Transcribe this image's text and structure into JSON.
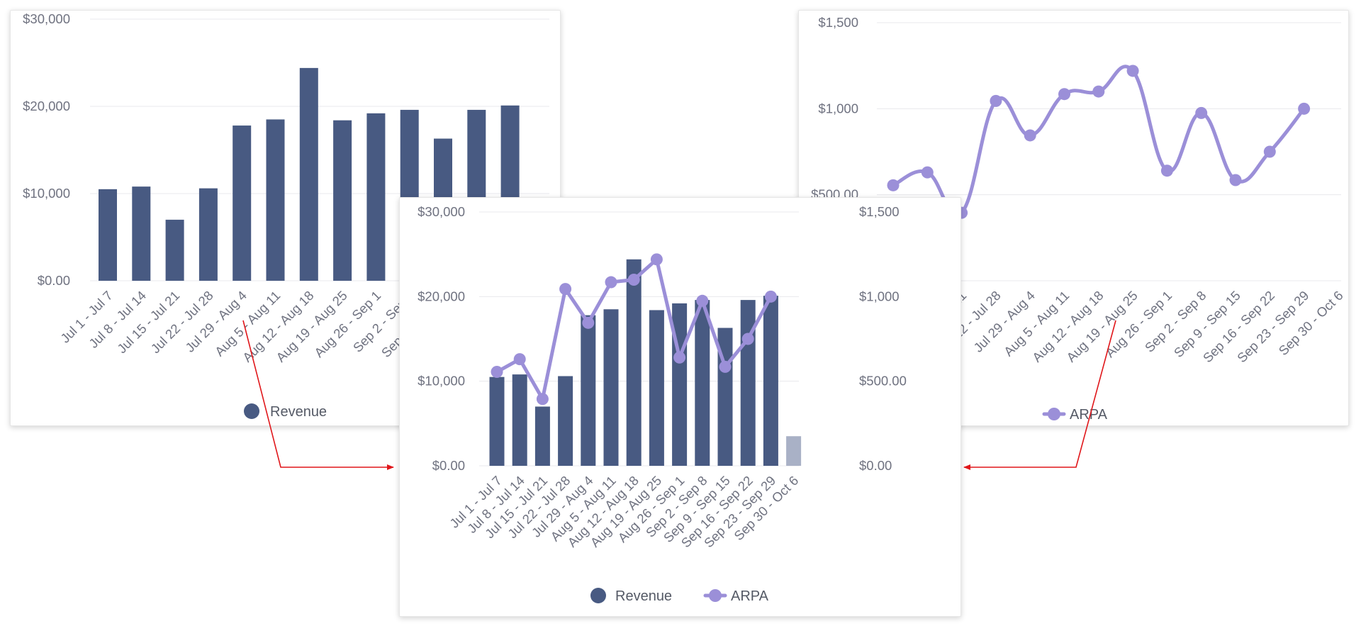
{
  "colors": {
    "revenue": "#485a82",
    "revenue_light": "#a9b1c6",
    "arpa": "#9b8fd8",
    "grid": "#e8e8ec",
    "axis_text": "#6f7280",
    "arrow": "#e0161a"
  },
  "chart_data": [
    {
      "id": "left",
      "type": "bar",
      "categories": [
        "Jul 1 - Jul 7",
        "Jul 8 - Jul 14",
        "Jul 15 - Jul 21",
        "Jul 22 - Jul 28",
        "Jul 29 - Aug 4",
        "Aug 5 - Aug 11",
        "Aug 12 - Aug 18",
        "Aug 19 - Aug 25",
        "Aug 26 - Sep 1",
        "Sep 2 - Sep 8",
        "Sep 9 - Sep 15",
        "Sep 16 - Sep 22",
        "Sep 23 - Sep 29"
      ],
      "series": [
        {
          "name": "Revenue",
          "values": [
            10500,
            10800,
            7000,
            10600,
            17800,
            18500,
            24400,
            18400,
            19200,
            19600,
            16300,
            19600,
            20100
          ]
        }
      ],
      "y_ticks": [
        "$0.00",
        "$10,000",
        "$20,000",
        "$30,000"
      ],
      "ylim": [
        0,
        30000
      ],
      "grid": true,
      "legend": "bottom"
    },
    {
      "id": "right",
      "type": "line",
      "categories": [
        "Jul 1 - Jul 7",
        "Jul 8 - Jul 14",
        "Jul 15 - Jul 21",
        "Jul 22 - Jul 28",
        "Jul 29 - Aug 4",
        "Aug 5 - Aug 11",
        "Aug 12 - Aug 18",
        "Aug 19 - Aug 25",
        "Aug 26 - Sep 1",
        "Sep 2 - Sep 8",
        "Sep 9 - Sep 15",
        "Sep 16 - Sep 22",
        "Sep 23 - Sep 29",
        "Sep 30 - Oct 6"
      ],
      "series": [
        {
          "name": "ARPA",
          "values": [
            555,
            630,
            395,
            1045,
            845,
            1085,
            1100,
            1220,
            640,
            975,
            585,
            750,
            1000,
            null
          ]
        }
      ],
      "y_ticks": [
        "$500.00",
        "$1,000",
        "$1,500"
      ],
      "ylim": [
        0,
        1500
      ],
      "grid": true,
      "legend": "bottom"
    },
    {
      "id": "main",
      "type": "bar+line",
      "categories": [
        "Jul 1 - Jul 7",
        "Jul 8 - Jul 14",
        "Jul 15 - Jul 21",
        "Jul 22 - Jul 28",
        "Jul 29 - Aug 4",
        "Aug 5 - Aug 11",
        "Aug 12 - Aug 18",
        "Aug 19 - Aug 25",
        "Aug 26 - Sep 1",
        "Sep 2 - Sep 8",
        "Sep 9 - Sep 15",
        "Sep 16 - Sep 22",
        "Sep 23 - Sep 29",
        "Sep 30 - Oct 6"
      ],
      "series": [
        {
          "name": "Revenue",
          "type": "bar",
          "axis": "left",
          "values": [
            10500,
            10800,
            7000,
            10600,
            17800,
            18500,
            24400,
            18400,
            19200,
            19600,
            16300,
            19600,
            20100,
            3500
          ]
        },
        {
          "name": "ARPA",
          "type": "line",
          "axis": "right",
          "values": [
            555,
            630,
            395,
            1045,
            845,
            1085,
            1100,
            1220,
            640,
            975,
            585,
            750,
            1000,
            null
          ]
        }
      ],
      "y_ticks_left": [
        "$0.00",
        "$10,000",
        "$20,000",
        "$30,000"
      ],
      "y_ticks_right": [
        "$0.00",
        "$500.00",
        "$1,000",
        "$1,500"
      ],
      "ylim_left": [
        0,
        30000
      ],
      "ylim_right": [
        0,
        1500
      ],
      "grid": true,
      "legend": "bottom"
    }
  ]
}
